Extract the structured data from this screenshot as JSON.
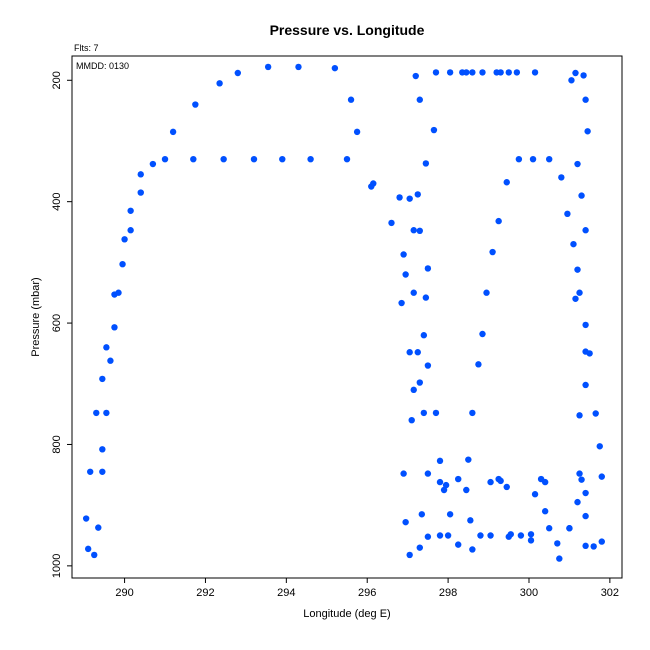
{
  "chart_data": {
    "type": "scatter",
    "title": "Pressure vs. Longitude",
    "xlabel": "Longitude (deg E)",
    "ylabel": "Pressure (mbar)",
    "annotations": {
      "flights": "Flts: 7",
      "date": "MMDD: 0130"
    },
    "xlim": [
      288.7,
      302.3
    ],
    "ylim": [
      1020,
      160
    ],
    "y_inverted": true,
    "x_ticks": [
      290,
      292,
      294,
      296,
      298,
      300,
      302
    ],
    "y_ticks": [
      200,
      400,
      600,
      800,
      1000
    ],
    "grid": false,
    "marker_color": "#0050ff",
    "series": [
      {
        "points": [
          [
            289.1,
            972
          ],
          [
            289.25,
            982
          ],
          [
            289.05,
            922
          ],
          [
            289.35,
            937
          ],
          [
            289.15,
            845
          ],
          [
            289.45,
            845
          ],
          [
            289.45,
            808
          ],
          [
            289.3,
            748
          ],
          [
            289.55,
            748
          ],
          [
            289.45,
            692
          ],
          [
            289.65,
            662
          ],
          [
            289.55,
            640
          ],
          [
            289.75,
            607
          ],
          [
            289.75,
            553
          ],
          [
            289.85,
            550
          ],
          [
            289.95,
            503
          ],
          [
            290.0,
            462
          ],
          [
            290.15,
            447
          ],
          [
            290.15,
            415
          ],
          [
            290.4,
            385
          ],
          [
            290.4,
            355
          ],
          [
            290.7,
            338
          ],
          [
            291.0,
            330
          ],
          [
            291.2,
            285
          ],
          [
            291.75,
            240
          ],
          [
            292.35,
            205
          ],
          [
            292.8,
            188
          ],
          [
            293.55,
            178
          ],
          [
            294.3,
            178
          ],
          [
            295.2,
            180
          ],
          [
            295.6,
            232
          ],
          [
            295.75,
            285
          ],
          [
            291.7,
            330
          ],
          [
            292.45,
            330
          ],
          [
            293.2,
            330
          ],
          [
            293.9,
            330
          ],
          [
            294.6,
            330
          ],
          [
            295.5,
            330
          ],
          [
            296.1,
            375
          ],
          [
            296.15,
            370
          ],
          [
            296.6,
            435
          ],
          [
            296.8,
            393
          ],
          [
            296.9,
            487
          ],
          [
            296.95,
            520
          ],
          [
            296.85,
            567
          ],
          [
            297.05,
            395
          ],
          [
            297.15,
            447
          ],
          [
            297.25,
            388
          ],
          [
            297.3,
            448
          ],
          [
            297.5,
            510
          ],
          [
            297.15,
            550
          ],
          [
            297.45,
            558
          ],
          [
            297.4,
            620
          ],
          [
            297.5,
            670
          ],
          [
            297.05,
            648
          ],
          [
            297.25,
            648
          ],
          [
            297.3,
            698
          ],
          [
            297.15,
            710
          ],
          [
            297.4,
            748
          ],
          [
            297.7,
            748
          ],
          [
            297.1,
            760
          ],
          [
            297.2,
            193
          ],
          [
            297.3,
            232
          ],
          [
            297.45,
            337
          ],
          [
            297.65,
            282
          ],
          [
            297.7,
            187
          ],
          [
            298.05,
            187
          ],
          [
            298.35,
            187
          ],
          [
            298.45,
            187
          ],
          [
            298.6,
            187
          ],
          [
            298.85,
            187
          ],
          [
            299.2,
            187
          ],
          [
            299.3,
            187
          ],
          [
            299.5,
            187
          ],
          [
            299.7,
            187
          ],
          [
            300.15,
            187
          ],
          [
            299.25,
            432
          ],
          [
            299.1,
            483
          ],
          [
            298.95,
            550
          ],
          [
            298.85,
            618
          ],
          [
            298.75,
            668
          ],
          [
            298.6,
            748
          ],
          [
            299.45,
            368
          ],
          [
            299.75,
            330
          ],
          [
            300.1,
            330
          ],
          [
            300.5,
            330
          ],
          [
            300.8,
            360
          ],
          [
            300.95,
            420
          ],
          [
            301.1,
            470
          ],
          [
            301.2,
            512
          ],
          [
            301.25,
            550
          ],
          [
            301.15,
            560
          ],
          [
            301.05,
            200
          ],
          [
            301.15,
            188
          ],
          [
            301.35,
            192
          ],
          [
            301.4,
            232
          ],
          [
            301.45,
            284
          ],
          [
            301.2,
            338
          ],
          [
            301.3,
            390
          ],
          [
            301.4,
            447
          ],
          [
            301.4,
            603
          ],
          [
            301.4,
            647
          ],
          [
            301.5,
            650
          ],
          [
            301.4,
            702
          ],
          [
            301.25,
            752
          ],
          [
            301.65,
            749
          ],
          [
            301.75,
            803
          ],
          [
            301.8,
            853
          ],
          [
            301.25,
            848
          ],
          [
            301.3,
            858
          ],
          [
            301.4,
            880
          ],
          [
            301.2,
            895
          ],
          [
            301.4,
            918
          ],
          [
            301.0,
            938
          ],
          [
            301.4,
            967
          ],
          [
            301.6,
            968
          ],
          [
            301.8,
            960
          ],
          [
            296.9,
            848
          ],
          [
            296.95,
            928
          ],
          [
            297.05,
            982
          ],
          [
            297.3,
            970
          ],
          [
            297.35,
            915
          ],
          [
            297.5,
            848
          ],
          [
            297.5,
            952
          ],
          [
            297.8,
            827
          ],
          [
            297.8,
            862
          ],
          [
            297.9,
            875
          ],
          [
            297.95,
            867
          ],
          [
            298.05,
            915
          ],
          [
            298.25,
            857
          ],
          [
            298.25,
            965
          ],
          [
            298.45,
            875
          ],
          [
            298.5,
            825
          ],
          [
            298.55,
            925
          ],
          [
            298.6,
            973
          ],
          [
            298.8,
            950
          ],
          [
            299.05,
            950
          ],
          [
            299.05,
            862
          ],
          [
            299.3,
            860
          ],
          [
            299.25,
            857
          ],
          [
            299.45,
            870
          ],
          [
            299.5,
            952
          ],
          [
            299.55,
            948
          ],
          [
            299.8,
            950
          ],
          [
            300.05,
            948
          ],
          [
            300.05,
            958
          ],
          [
            300.15,
            882
          ],
          [
            300.3,
            857
          ],
          [
            300.4,
            862
          ],
          [
            300.4,
            910
          ],
          [
            300.5,
            938
          ],
          [
            300.7,
            963
          ],
          [
            300.75,
            988
          ],
          [
            301.0,
            938
          ],
          [
            297.8,
            950
          ],
          [
            298.0,
            950
          ]
        ]
      }
    ]
  }
}
